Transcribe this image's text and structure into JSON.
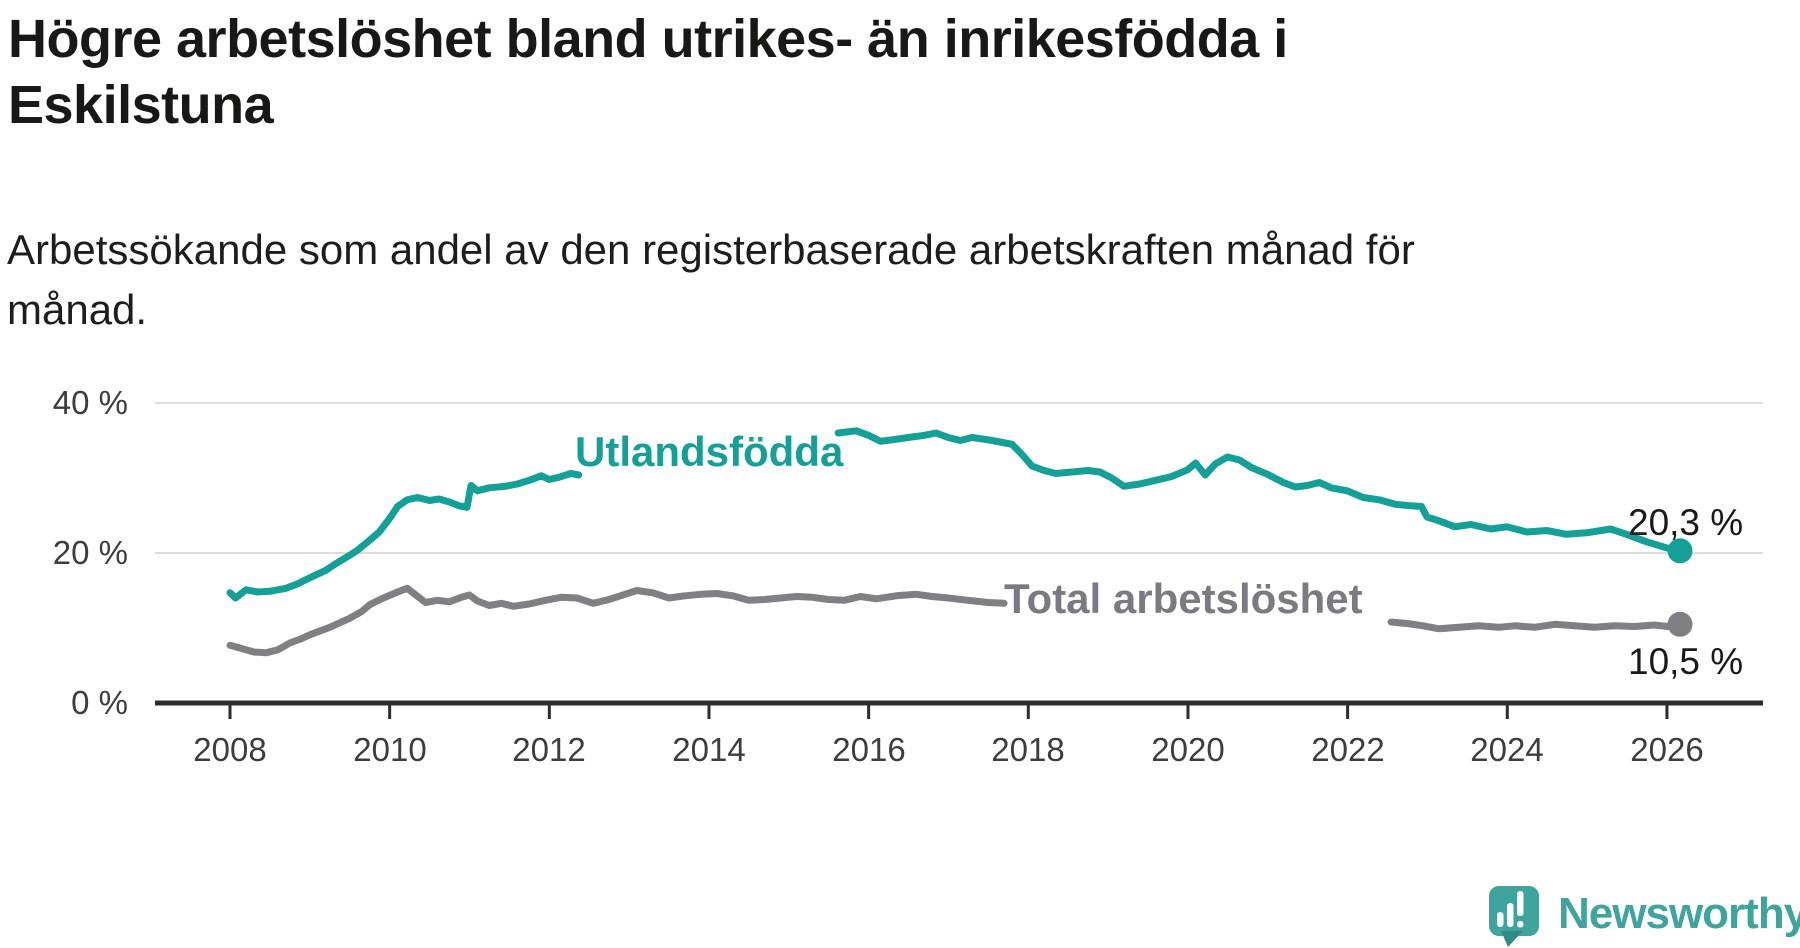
{
  "header": {
    "title_line1": "Högre arbetslöshet bland utrikes- än inrikesfödda i",
    "title_line2": "Eskilstuna",
    "subtitle_line1": "Arbetssökande som andel av den registerbaserade arbetskraften månad för",
    "subtitle_line2": "månad."
  },
  "chart_data": {
    "type": "line",
    "title": "Högre arbetslöshet bland utrikes- än inrikesfödda i Eskilstuna",
    "subtitle": "Arbetssökande som andel av den registerbaserade arbetskraften månad för månad.",
    "unit": "%",
    "x_range_years": [
      2008.0,
      2026.17
    ],
    "ylim": [
      0,
      40
    ],
    "grid": "horizontal-only",
    "x_ticks": [
      "2008",
      "2010",
      "2012",
      "2014",
      "2016",
      "2018",
      "2020",
      "2022",
      "2024",
      "2026"
    ],
    "y_ticks": [
      {
        "label": "40 %",
        "value": 40
      },
      {
        "label": "20 %",
        "value": 20
      },
      {
        "label": "0 %",
        "value": 0
      }
    ],
    "colors": {
      "utlandsfodda": "#14A096",
      "total": "#7F7F84",
      "grid": "#dcdcdc",
      "axis": "#2d2d2d",
      "text": "#3d3d3d"
    },
    "series": [
      {
        "name": "Utlandsfödda",
        "color": "#14A096",
        "end_label": "20,3 %",
        "end_value": 20.3,
        "end_year": 2026.17,
        "segments": [
          [
            [
              2008.0,
              14.7
            ],
            [
              2008.07,
              14.0
            ],
            [
              2008.2,
              15.1
            ],
            [
              2008.35,
              14.8
            ],
            [
              2008.5,
              14.9
            ],
            [
              2008.7,
              15.3
            ],
            [
              2008.85,
              15.9
            ],
            [
              2009.0,
              16.7
            ],
            [
              2009.2,
              17.7
            ],
            [
              2009.3,
              18.4
            ],
            [
              2009.5,
              19.7
            ],
            [
              2009.6,
              20.4
            ],
            [
              2009.75,
              21.7
            ],
            [
              2009.87,
              22.8
            ],
            [
              2010.0,
              24.6
            ],
            [
              2010.1,
              26.2
            ],
            [
              2010.22,
              27.1
            ],
            [
              2010.35,
              27.4
            ],
            [
              2010.5,
              27.0
            ],
            [
              2010.62,
              27.2
            ],
            [
              2010.75,
              26.8
            ],
            [
              2010.87,
              26.3
            ],
            [
              2010.97,
              26.1
            ],
            [
              2011.02,
              29.0
            ],
            [
              2011.1,
              28.3
            ],
            [
              2011.25,
              28.7
            ],
            [
              2011.45,
              28.9
            ],
            [
              2011.6,
              29.2
            ],
            [
              2011.75,
              29.7
            ],
            [
              2011.9,
              30.3
            ],
            [
              2012.0,
              29.8
            ],
            [
              2012.12,
              30.1
            ],
            [
              2012.27,
              30.6
            ],
            [
              2012.37,
              30.4
            ]
          ],
          [
            [
              2015.62,
              36.0
            ],
            [
              2015.85,
              36.3
            ],
            [
              2016.0,
              35.7
            ],
            [
              2016.15,
              34.9
            ],
            [
              2016.3,
              35.1
            ],
            [
              2016.5,
              35.4
            ],
            [
              2016.7,
              35.7
            ],
            [
              2016.85,
              36.0
            ],
            [
              2017.0,
              35.4
            ],
            [
              2017.15,
              35.0
            ],
            [
              2017.3,
              35.4
            ],
            [
              2017.5,
              35.1
            ],
            [
              2017.65,
              34.8
            ],
            [
              2017.8,
              34.5
            ],
            [
              2017.92,
              33.2
            ],
            [
              2018.05,
              31.6
            ],
            [
              2018.2,
              31.0
            ],
            [
              2018.35,
              30.6
            ],
            [
              2018.55,
              30.8
            ],
            [
              2018.75,
              31.0
            ],
            [
              2018.9,
              30.8
            ],
            [
              2019.05,
              30.0
            ],
            [
              2019.2,
              28.9
            ],
            [
              2019.4,
              29.2
            ],
            [
              2019.6,
              29.7
            ],
            [
              2019.8,
              30.2
            ],
            [
              2020.0,
              31.1
            ],
            [
              2020.1,
              32.0
            ],
            [
              2020.22,
              30.4
            ],
            [
              2020.35,
              31.9
            ],
            [
              2020.5,
              32.8
            ],
            [
              2020.65,
              32.4
            ],
            [
              2020.8,
              31.4
            ],
            [
              2021.0,
              30.5
            ],
            [
              2021.2,
              29.4
            ],
            [
              2021.35,
              28.8
            ],
            [
              2021.5,
              29.0
            ],
            [
              2021.65,
              29.4
            ],
            [
              2021.8,
              28.7
            ],
            [
              2022.0,
              28.3
            ],
            [
              2022.2,
              27.4
            ],
            [
              2022.4,
              27.1
            ],
            [
              2022.6,
              26.5
            ],
            [
              2022.8,
              26.3
            ],
            [
              2022.93,
              26.2
            ],
            [
              2023.0,
              24.8
            ],
            [
              2023.15,
              24.3
            ],
            [
              2023.35,
              23.5
            ],
            [
              2023.55,
              23.8
            ],
            [
              2023.8,
              23.2
            ],
            [
              2024.0,
              23.5
            ],
            [
              2024.25,
              22.8
            ],
            [
              2024.5,
              23.0
            ],
            [
              2024.75,
              22.5
            ],
            [
              2025.0,
              22.7
            ],
            [
              2025.3,
              23.2
            ],
            [
              2025.5,
              22.5
            ],
            [
              2025.75,
              21.5
            ],
            [
              2026.0,
              20.7
            ],
            [
              2026.17,
              20.3
            ]
          ]
        ]
      },
      {
        "name": "Total arbetslöshet",
        "color": "#7F7F84",
        "end_label": "10,5 %",
        "end_value": 10.5,
        "end_year": 2026.17,
        "segments": [
          [
            [
              2008.0,
              7.7
            ],
            [
              2008.1,
              7.4
            ],
            [
              2008.3,
              6.8
            ],
            [
              2008.45,
              6.7
            ],
            [
              2008.6,
              7.1
            ],
            [
              2008.75,
              8.0
            ],
            [
              2008.9,
              8.6
            ],
            [
              2009.0,
              9.1
            ],
            [
              2009.25,
              10.1
            ],
            [
              2009.5,
              11.3
            ],
            [
              2009.65,
              12.2
            ],
            [
              2009.75,
              13.1
            ],
            [
              2009.9,
              13.9
            ],
            [
              2010.1,
              14.8
            ],
            [
              2010.22,
              15.3
            ],
            [
              2010.45,
              13.4
            ],
            [
              2010.6,
              13.7
            ],
            [
              2010.75,
              13.5
            ],
            [
              2010.9,
              14.1
            ],
            [
              2011.0,
              14.4
            ],
            [
              2011.1,
              13.6
            ],
            [
              2011.25,
              13.0
            ],
            [
              2011.4,
              13.3
            ],
            [
              2011.55,
              12.9
            ],
            [
              2011.75,
              13.2
            ],
            [
              2011.95,
              13.7
            ],
            [
              2012.15,
              14.1
            ],
            [
              2012.35,
              14.0
            ],
            [
              2012.55,
              13.3
            ],
            [
              2012.75,
              13.8
            ],
            [
              2012.95,
              14.5
            ],
            [
              2013.1,
              15.0
            ],
            [
              2013.3,
              14.7
            ],
            [
              2013.5,
              14.0
            ],
            [
              2013.7,
              14.3
            ],
            [
              2013.9,
              14.5
            ],
            [
              2014.1,
              14.6
            ],
            [
              2014.3,
              14.3
            ],
            [
              2014.5,
              13.7
            ],
            [
              2014.7,
              13.8
            ],
            [
              2014.9,
              14.0
            ],
            [
              2015.1,
              14.2
            ],
            [
              2015.3,
              14.1
            ],
            [
              2015.5,
              13.8
            ],
            [
              2015.7,
              13.7
            ],
            [
              2015.9,
              14.2
            ],
            [
              2016.1,
              13.9
            ],
            [
              2016.35,
              14.3
            ],
            [
              2016.6,
              14.5
            ],
            [
              2016.8,
              14.2
            ],
            [
              2017.0,
              14.0
            ],
            [
              2017.25,
              13.7
            ],
            [
              2017.5,
              13.4
            ],
            [
              2017.7,
              13.3
            ]
          ],
          [
            [
              2022.55,
              10.8
            ],
            [
              2022.75,
              10.6
            ],
            [
              2022.95,
              10.3
            ],
            [
              2023.15,
              9.9
            ],
            [
              2023.4,
              10.1
            ],
            [
              2023.65,
              10.3
            ],
            [
              2023.9,
              10.1
            ],
            [
              2024.1,
              10.3
            ],
            [
              2024.35,
              10.1
            ],
            [
              2024.6,
              10.5
            ],
            [
              2024.85,
              10.3
            ],
            [
              2025.1,
              10.1
            ],
            [
              2025.35,
              10.3
            ],
            [
              2025.6,
              10.2
            ],
            [
              2025.85,
              10.4
            ],
            [
              2026.02,
              10.2
            ],
            [
              2026.17,
              10.5
            ]
          ]
        ]
      }
    ],
    "legend_position": "inline-labels"
  },
  "labels": {
    "utlandsfodda": "Utlandsfödda",
    "total": "Total arbetslöshet",
    "end_utlandsfodda": "20,3 %",
    "end_total": "10,5 %"
  },
  "footer": {
    "logo_text": "Newsworthy",
    "logo_color": "#3FA49C"
  }
}
